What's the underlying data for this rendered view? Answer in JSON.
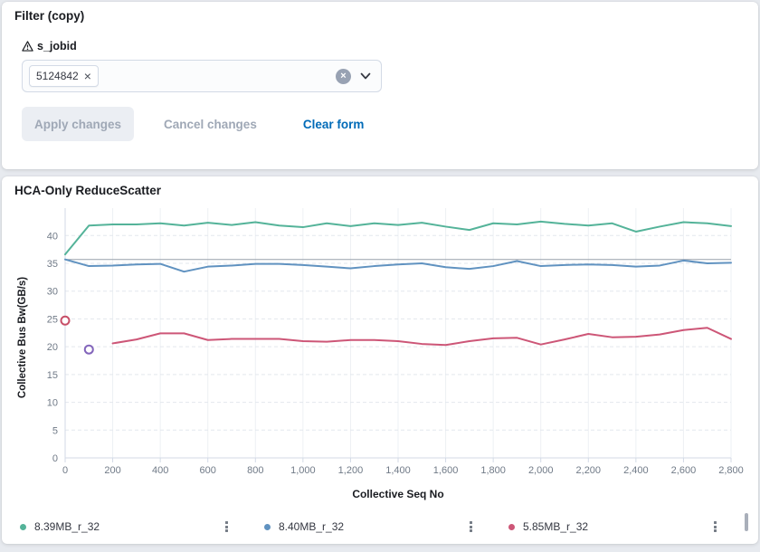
{
  "filter_panel": {
    "title": "Filter (copy)",
    "field": {
      "warning_icon": "warning-triangle-icon",
      "label": "s_jobid",
      "tags": [
        {
          "value": "5124842"
        }
      ]
    },
    "actions": {
      "apply": "Apply changes",
      "cancel": "Cancel changes",
      "clear": "Clear form"
    }
  },
  "chart_panel": {
    "title": "HCA-Only ReduceScatter"
  },
  "chart_data": {
    "type": "line",
    "title": "HCA-Only ReduceScatter",
    "xlabel": "Collective Seq No",
    "ylabel": "Collective Bus Bw(GB/s)",
    "xlim": [
      0,
      2800
    ],
    "ylim": [
      0,
      43.3
    ],
    "grid": true,
    "legend_position": "bottom",
    "x_ticks": [
      {
        "v": 0,
        "label": "0"
      },
      {
        "v": 200,
        "label": "200"
      },
      {
        "v": 400,
        "label": "400"
      },
      {
        "v": 600,
        "label": "600"
      },
      {
        "v": 800,
        "label": "800"
      },
      {
        "v": 1000,
        "label": "1,000"
      },
      {
        "v": 1200,
        "label": "1,200"
      },
      {
        "v": 1400,
        "label": "1,400"
      },
      {
        "v": 1600,
        "label": "1,600"
      },
      {
        "v": 1800,
        "label": "1,800"
      },
      {
        "v": 2000,
        "label": "2,000"
      },
      {
        "v": 2200,
        "label": "2,200"
      },
      {
        "v": 2400,
        "label": "2,400"
      },
      {
        "v": 2600,
        "label": "2,600"
      },
      {
        "v": 2800,
        "label": "2,800"
      }
    ],
    "y_ticks": [
      0,
      5,
      10,
      15,
      20,
      25,
      30,
      35,
      40
    ],
    "reference_line": {
      "y": 35.7,
      "color": "#99a1ac"
    },
    "series": [
      {
        "name": "8.39MB_r_32",
        "color": "#54b399",
        "x_start": 0,
        "x_step": 100,
        "values": [
          36.6,
          41.8,
          42.0,
          42.0,
          42.2,
          41.8,
          42.3,
          41.9,
          42.4,
          41.8,
          41.5,
          42.2,
          41.7,
          42.2,
          41.9,
          42.3,
          41.6,
          41.0,
          42.2,
          42.0,
          42.5,
          42.1,
          41.8,
          42.2,
          40.7,
          41.6,
          42.4,
          42.2,
          41.7
        ]
      },
      {
        "name": "8.40MB_r_32",
        "color": "#6092c0",
        "x_start": 0,
        "x_step": 100,
        "values": [
          35.7,
          34.5,
          34.6,
          34.8,
          34.9,
          33.5,
          34.4,
          34.6,
          34.9,
          34.9,
          34.7,
          34.4,
          34.1,
          34.5,
          34.8,
          35.0,
          34.3,
          34.0,
          34.5,
          35.4,
          34.5,
          34.7,
          34.8,
          34.7,
          34.4,
          34.6,
          35.5,
          35.0,
          35.1
        ]
      },
      {
        "name": "5.85MB_r_32",
        "color": "#cd5677",
        "x_start": 200,
        "x_step": 100,
        "values": [
          20.6,
          21.3,
          22.4,
          22.4,
          21.2,
          21.4,
          21.4,
          21.4,
          21.0,
          20.9,
          21.2,
          21.2,
          21.0,
          20.5,
          20.3,
          21.0,
          21.5,
          21.6,
          20.4,
          21.3,
          22.3,
          21.7,
          21.8,
          22.2,
          23.0,
          23.4,
          21.4
        ]
      }
    ],
    "isolated_points": [
      {
        "x": 0,
        "y": 24.7,
        "color": "#c74f68"
      },
      {
        "x": 100,
        "y": 19.5,
        "color": "#8365bb"
      }
    ]
  }
}
